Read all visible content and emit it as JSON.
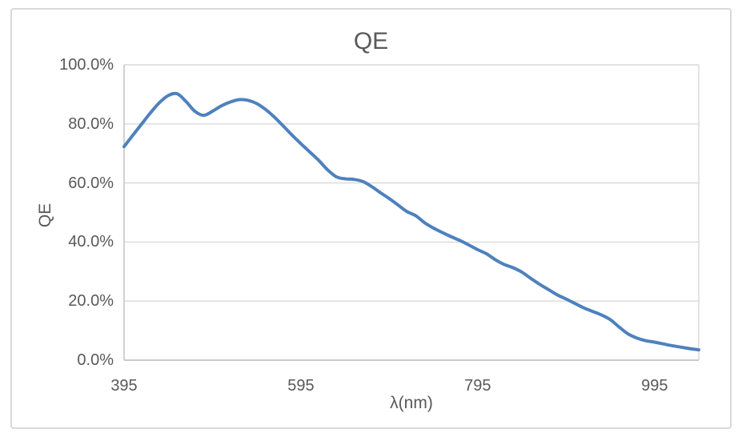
{
  "chart": {
    "title": "QE",
    "y_axis_title": "QE",
    "x_axis_title": "λ(nm)"
  },
  "colors": {
    "line": "#4E81BD",
    "text": "#595959",
    "gridline": "#D9D9D9",
    "axis_line": "#BFBFBF",
    "frame_border": "#D9D9D9",
    "background": "#FFFFFF"
  },
  "chart_data": {
    "type": "line",
    "title": "QE",
    "xlabel": "λ(nm)",
    "ylabel": "QE",
    "grid": true,
    "smooth": true,
    "legend": "none",
    "xlim": [
      395,
      1045
    ],
    "ylim": [
      0,
      100
    ],
    "x_ticks": [
      {
        "label": "395",
        "value": 395
      },
      {
        "label": "595",
        "value": 595
      },
      {
        "label": "795",
        "value": 795
      },
      {
        "label": "995",
        "value": 995
      }
    ],
    "y_ticks": [
      {
        "label": "100.0%",
        "value": 100
      },
      {
        "label": "80.0%",
        "value": 80
      },
      {
        "label": "60.0%",
        "value": 60
      },
      {
        "label": "40.0%",
        "value": 40
      },
      {
        "label": "20.0%",
        "value": 20
      },
      {
        "label": "0.0%",
        "value": 0
      }
    ],
    "series": [
      {
        "name": "QE",
        "x": [
          395,
          405,
          415,
          425,
          435,
          445,
          455,
          465,
          475,
          485,
          495,
          505,
          515,
          525,
          535,
          545,
          555,
          565,
          575,
          585,
          595,
          605,
          615,
          625,
          635,
          645,
          655,
          665,
          675,
          685,
          695,
          705,
          715,
          725,
          735,
          745,
          755,
          765,
          775,
          785,
          795,
          805,
          815,
          825,
          835,
          845,
          855,
          865,
          875,
          885,
          895,
          905,
          915,
          925,
          935,
          945,
          955,
          965,
          975,
          985,
          995,
          1005,
          1015,
          1025,
          1035,
          1045
        ],
        "y": [
          72.3,
          76.2,
          80.0,
          83.8,
          87.2,
          89.6,
          90.2,
          87.6,
          84.3,
          82.9,
          84.3,
          86.1,
          87.4,
          88.2,
          88.0,
          86.9,
          84.9,
          82.3,
          79.3,
          76.2,
          73.3,
          70.5,
          67.7,
          64.5,
          62.1,
          61.4,
          61.2,
          60.5,
          58.8,
          56.7,
          54.7,
          52.5,
          50.3,
          48.9,
          46.5,
          44.7,
          43.2,
          41.8,
          40.5,
          39.0,
          37.4,
          36.0,
          34.0,
          32.4,
          31.3,
          29.8,
          27.7,
          25.7,
          23.9,
          22.1,
          20.7,
          19.2,
          17.7,
          16.5,
          15.3,
          13.7,
          11.2,
          8.9,
          7.5,
          6.6,
          6.1,
          5.5,
          4.9,
          4.4,
          3.9,
          3.5
        ]
      }
    ]
  }
}
